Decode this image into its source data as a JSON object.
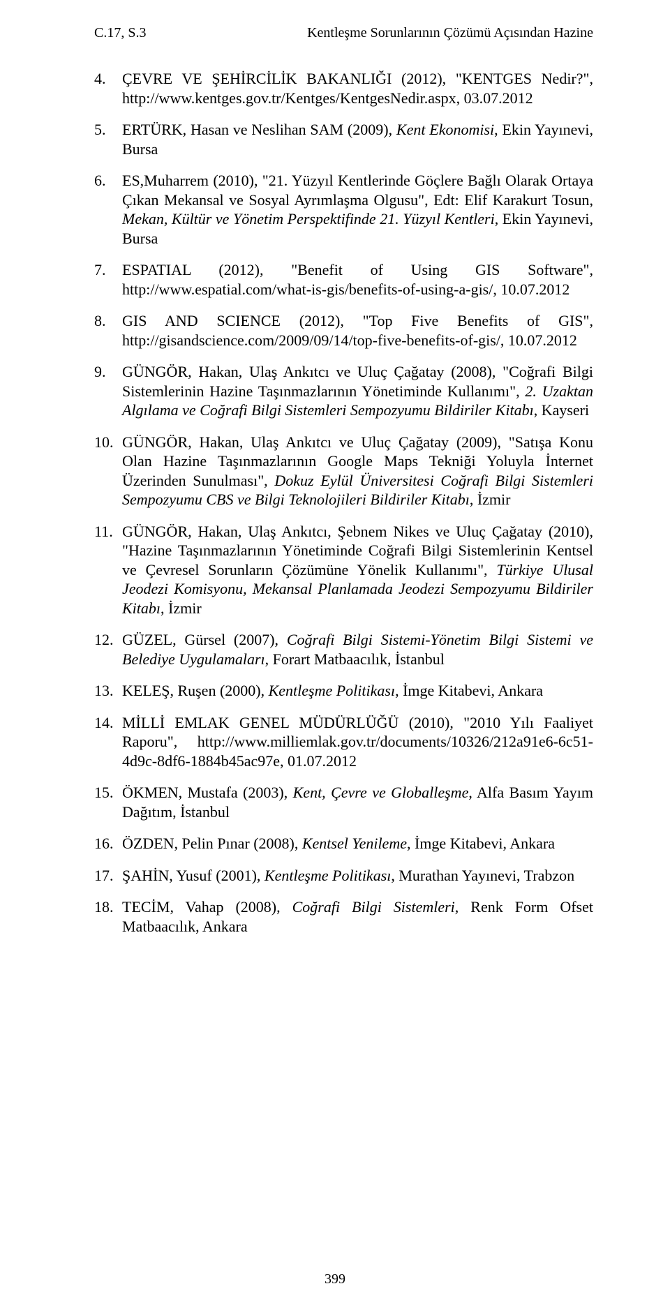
{
  "header": {
    "left": "C.17, S.3",
    "right": "Kentleşme Sorunlarının Çözümü Açısından Hazine"
  },
  "page_number": "399",
  "refs": [
    {
      "html": "ÇEVRE VE ŞEHİRCİLİK BAKANLIĞI (2012), \"KENTGES Nedir?\", http://www.kentges.gov.tr/Kentges/KentgesNedir.aspx, 03.07.2012"
    },
    {
      "html": "ERTÜRK, Hasan ve Neslihan SAM (2009), <span class=\"italic\">Kent Ekonomisi</span>, Ekin Yayınevi, Bursa"
    },
    {
      "html": "ES,Muharrem (2010), \"21. Yüzyıl Kentlerinde Göçlere Bağlı Olarak Ortaya Çıkan Mekansal ve Sosyal Ayrımlaşma Olgusu\", Edt: Elif Karakurt Tosun, <span class=\"italic\">Mekan, Kültür ve Yönetim Perspektifinde 21. Yüzyıl Kentleri</span>, Ekin Yayınevi, Bursa"
    },
    {
      "html": "ESPATIAL (2012), \"Benefit of Using GIS Software\", http://www.espatial.com/what-is-gis/benefits-of-using-a-gis/, 10.07.2012"
    },
    {
      "html": "GIS AND SCIENCE (2012), \"Top Five Benefits of GIS\", http://gisandscience.com/2009/09/14/top-five-benefits-of-gis/, 10.07.2012"
    },
    {
      "html": "GÜNGÖR, Hakan, Ulaş Ankıtcı ve Uluç Çağatay (2008), \"Coğrafi Bilgi Sistemlerinin Hazine Taşınmazlarının Yönetiminde Kullanımı\", <span class=\"italic\">2. Uzaktan Algılama ve Coğrafi Bilgi Sistemleri Sempozyumu Bildiriler Kitabı</span>, Kayseri"
    },
    {
      "html": "GÜNGÖR, Hakan, Ulaş Ankıtcı ve Uluç Çağatay (2009), \"Satışa Konu Olan Hazine Taşınmazlarının Google Maps Tekniği Yoluyla İnternet Üzerinden Sunulması\", <span class=\"italic\">Dokuz Eylül Üniversitesi Coğrafi Bilgi Sistemleri Sempozyumu CBS ve Bilgi Teknolojileri Bildiriler Kitabı</span>, İzmir"
    },
    {
      "html": "GÜNGÖR, Hakan, Ulaş Ankıtcı, Şebnem Nikes ve Uluç Çağatay (2010), \"Hazine Taşınmazlarının Yönetiminde Coğrafi Bilgi Sistemlerinin Kentsel ve Çevresel Sorunların Çözümüne Yönelik Kullanımı\", <span class=\"italic\">Türkiye Ulusal Jeodezi Komisyonu, Mekansal Planlamada Jeodezi Sempozyumu Bildiriler Kitabı</span>, İzmir"
    },
    {
      "html": "GÜZEL, Gürsel (2007), <span class=\"italic\">Coğrafi Bilgi Sistemi-Yönetim Bilgi Sistemi ve Belediye Uygulamaları</span>, Forart Matbaacılık, İstanbul"
    },
    {
      "html": "KELEŞ, Ruşen (2000), <span class=\"italic\">Kentleşme Politikası</span>, İmge Kitabevi, Ankara"
    },
    {
      "html": "MİLLİ EMLAK GENEL MÜDÜRLÜĞÜ (2010), \"2010 Yılı Faaliyet Raporu\", http://www.milliemlak.gov.tr/documents/10326/212a91e6-6c51-4d9c-8df6-1884b45ac97e, 01.07.2012"
    },
    {
      "html": "ÖKMEN, Mustafa (2003), <span class=\"italic\">Kent, Çevre ve Globalleşme</span>, Alfa Basım Yayım Dağıtım, İstanbul"
    },
    {
      "html": "ÖZDEN, Pelin Pınar (2008), <span class=\"italic\">Kentsel Yenileme</span>, İmge Kitabevi, Ankara"
    },
    {
      "html": "ŞAHİN, Yusuf (2001), <span class=\"italic\">Kentleşme Politikası</span>, Murathan Yayınevi, Trabzon"
    },
    {
      "html": "TECİM, Vahap (2008), <span class=\"italic\">Coğrafi Bilgi Sistemleri</span>, Renk Form Ofset Matbaacılık, Ankara"
    }
  ]
}
